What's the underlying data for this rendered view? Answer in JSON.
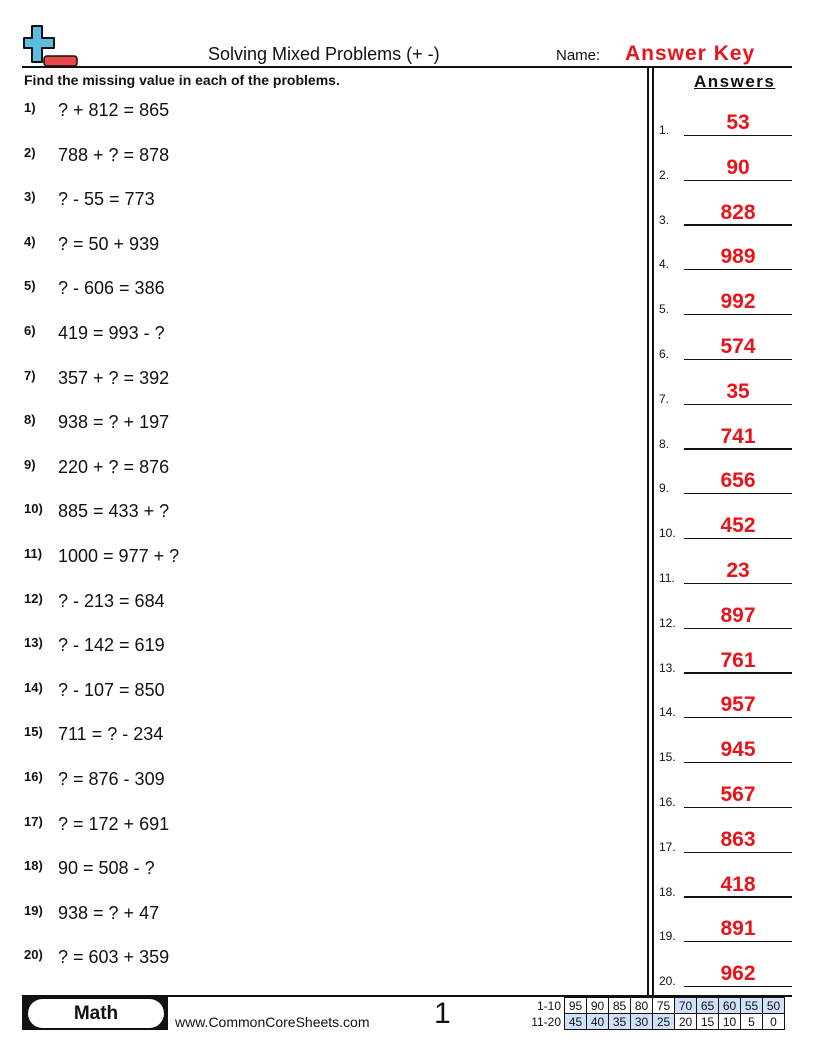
{
  "header": {
    "title": "Solving Mixed Problems (+ -)",
    "name_label": "Name:",
    "name_value": "Answer Key",
    "logo": "plus-minus-logo"
  },
  "instructions": "Find the missing value in each of the problems.",
  "answers_heading": "Answers",
  "problems": [
    {
      "num": "1)",
      "text": "? + 812 = 865"
    },
    {
      "num": "2)",
      "text": "788 + ? = 878"
    },
    {
      "num": "3)",
      "text": "? - 55 = 773"
    },
    {
      "num": "4)",
      "text": "? = 50 + 939"
    },
    {
      "num": "5)",
      "text": "? - 606 = 386"
    },
    {
      "num": "6)",
      "text": "419 = 993 - ?"
    },
    {
      "num": "7)",
      "text": "357 + ? = 392"
    },
    {
      "num": "8)",
      "text": "938 = ? + 197"
    },
    {
      "num": "9)",
      "text": "220 + ? = 876"
    },
    {
      "num": "10)",
      "text": "885 = 433 + ?"
    },
    {
      "num": "11)",
      "text": "1000 = 977 + ?"
    },
    {
      "num": "12)",
      "text": "? - 213 = 684"
    },
    {
      "num": "13)",
      "text": "? - 142 = 619"
    },
    {
      "num": "14)",
      "text": "? - 107 = 850"
    },
    {
      "num": "15)",
      "text": "711 = ? - 234"
    },
    {
      "num": "16)",
      "text": "? = 876 - 309"
    },
    {
      "num": "17)",
      "text": "? = 172 + 691"
    },
    {
      "num": "18)",
      "text": "90 = 508 - ?"
    },
    {
      "num": "19)",
      "text": "938 = ? + 47"
    },
    {
      "num": "20)",
      "text": "? = 603 + 359"
    }
  ],
  "answers": [
    {
      "num": "1.",
      "value": "53"
    },
    {
      "num": "2.",
      "value": "90"
    },
    {
      "num": "3.",
      "value": "828"
    },
    {
      "num": "4.",
      "value": "989"
    },
    {
      "num": "5.",
      "value": "992"
    },
    {
      "num": "6.",
      "value": "574"
    },
    {
      "num": "7.",
      "value": "35"
    },
    {
      "num": "8.",
      "value": "741"
    },
    {
      "num": "9.",
      "value": "656"
    },
    {
      "num": "10.",
      "value": "452"
    },
    {
      "num": "11.",
      "value": "23"
    },
    {
      "num": "12.",
      "value": "897"
    },
    {
      "num": "13.",
      "value": "761"
    },
    {
      "num": "14.",
      "value": "957"
    },
    {
      "num": "15.",
      "value": "945"
    },
    {
      "num": "16.",
      "value": "567"
    },
    {
      "num": "17.",
      "value": "863"
    },
    {
      "num": "18.",
      "value": "418"
    },
    {
      "num": "19.",
      "value": "891"
    },
    {
      "num": "20.",
      "value": "962"
    }
  ],
  "footer": {
    "subject": "Math",
    "site": "www.CommonCoreSheets.com",
    "page": "1",
    "score_rows": [
      {
        "label": "1-10",
        "scores": [
          "95",
          "90",
          "85",
          "80",
          "75",
          "70",
          "65",
          "60",
          "55",
          "50"
        ]
      },
      {
        "label": "11-20",
        "scores": [
          "45",
          "40",
          "35",
          "30",
          "25",
          "20",
          "15",
          "10",
          "5",
          "0"
        ]
      }
    ]
  },
  "colors": {
    "answer": "#e8141b",
    "highlight": "#cfe2fa",
    "logo_plus": "#5bbde0",
    "logo_minus": "#e84848"
  }
}
